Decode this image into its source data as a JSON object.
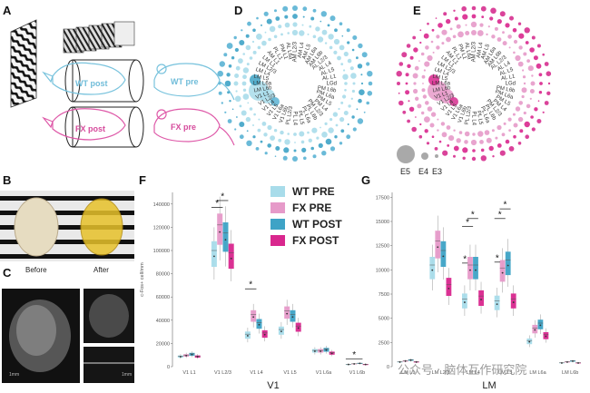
{
  "panels": {
    "a": "A",
    "b": "B",
    "c": "C",
    "d": "D",
    "e": "E",
    "f": "F",
    "g": "G"
  },
  "panel_a": {
    "labels": [
      "WT post",
      "WT pre",
      "FX post",
      "FX pre"
    ]
  },
  "panel_b": {
    "before": "Before",
    "after": "After"
  },
  "panel_c": {
    "scale1": "1mm",
    "scale2": "1mm"
  },
  "colors": {
    "wt_pre": "#a8dcea",
    "fx_pre": "#e69ac9",
    "wt_post": "#3ea3c6",
    "fx_post": "#d9278e",
    "wt_ring": "#5ab3d4",
    "fx_ring": "#d62f8f"
  },
  "rings": {
    "labels": [
      "AM L2/3",
      "AM L4",
      "AM L5",
      "AM L6a",
      "AM L6b",
      "AL L2/3",
      "AL L4",
      "AL L5",
      "AL L1",
      "LGd",
      "PM L6b",
      "PM L6a",
      "PM L5",
      "PM L4",
      "PM L2/3",
      "PL L6b",
      "PL L6a",
      "PL L5",
      "PL L4",
      "PL L2/3",
      "V1 L6b",
      "V1 L6a",
      "V1 L5",
      "V1 L4",
      "V1 L2/3",
      "V1 L1",
      "LM L6b",
      "LM L6a",
      "LM L5",
      "LM L4",
      "LM L2/3",
      "LM L1",
      "AM L1",
      "PL L1",
      "PM L1",
      "AL L6a"
    ],
    "size_legend": [
      "E5",
      "E4",
      "E3"
    ]
  },
  "legend": {
    "items": [
      "WT PRE",
      "FX PRE",
      "WT POST",
      "FX  POST"
    ]
  },
  "chart_data": [
    {
      "type": "bar",
      "panel": "F",
      "title": "",
      "xlabel": "V1",
      "ylabel": "c-Fos+ cell/mm",
      "ylim": [
        0,
        150000
      ],
      "yticks": [
        "0",
        "20000",
        "40000",
        "60000",
        "80000",
        "100000",
        "120000",
        "140000"
      ],
      "categories": [
        "V1 L1",
        "V1 L2/3",
        "V1 L4",
        "V1 L5",
        "V1 L6a",
        "V1 L6b"
      ],
      "series": [
        {
          "name": "WT PRE",
          "values": [
            9000,
            100000,
            28000,
            32000,
            14000,
            2000
          ]
        },
        {
          "name": "FX PRE",
          "values": [
            10000,
            122000,
            45000,
            48000,
            14000,
            2500
          ]
        },
        {
          "name": "WT POST",
          "values": [
            11000,
            115000,
            38000,
            45000,
            15000,
            3000
          ]
        },
        {
          "name": "FX  POST",
          "values": [
            9000,
            98000,
            29000,
            35000,
            12000,
            2000
          ]
        }
      ],
      "significance": [
        "*",
        "*",
        "*",
        "*",
        "*"
      ]
    },
    {
      "type": "bar",
      "panel": "G",
      "title": "",
      "xlabel": "LM",
      "ylabel": "",
      "ylim": [
        0,
        18000
      ],
      "yticks": [
        "0",
        "2500",
        "5000",
        "7500",
        "10000",
        "12500",
        "15000",
        "17500"
      ],
      "categories": [
        "LM L1",
        "LM L2/3",
        "LM L4",
        "LM L5",
        "LM L6a",
        "LM L6b"
      ],
      "series": [
        {
          "name": "WT PRE",
          "values": [
            500,
            10500,
            7000,
            6800,
            2700,
            400
          ]
        },
        {
          "name": "FX PRE",
          "values": [
            600,
            13000,
            10500,
            10200,
            4000,
            500
          ]
        },
        {
          "name": "WT POST",
          "values": [
            700,
            12000,
            10500,
            11000,
            4500,
            600
          ]
        },
        {
          "name": "FX  POST",
          "values": [
            500,
            8500,
            7300,
            7000,
            3300,
            400
          ]
        }
      ],
      "significance": [
        "*",
        "*",
        "*",
        "*",
        "*",
        "*",
        "*",
        "*"
      ]
    }
  ],
  "watermark": "公众号 · 脑体互作研究院"
}
